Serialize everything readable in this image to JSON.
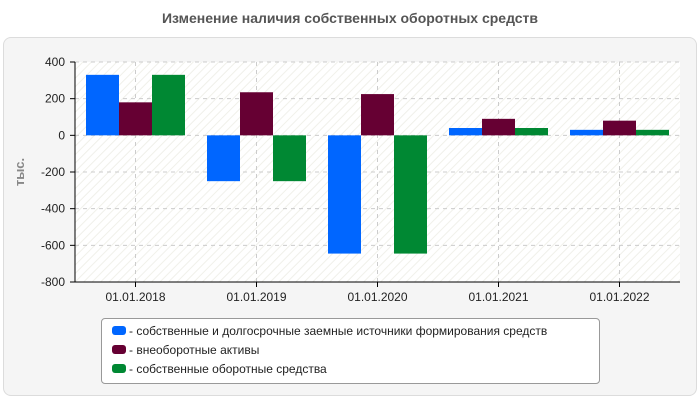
{
  "chart_data": {
    "type": "bar",
    "title": "Изменение наличия собственных оборотных средств",
    "ylabel": "тыс.",
    "xlabel": "",
    "ylim": [
      -800,
      400
    ],
    "yticks": [
      400,
      200,
      0,
      -200,
      -400,
      -600,
      -800
    ],
    "categories": [
      "01.01.2018",
      "01.01.2019",
      "01.01.2020",
      "01.01.2021",
      "01.01.2022"
    ],
    "series": [
      {
        "name": "- собственные и долгосрочные заемные источники формирования средств",
        "color": "#0066ff",
        "values": [
          330,
          -250,
          -645,
          40,
          30
        ]
      },
      {
        "name": "- внеоборотные активы",
        "color": "#660033",
        "values": [
          180,
          235,
          225,
          90,
          80
        ]
      },
      {
        "name": "- собственные оборотные средства",
        "color": "#008833",
        "values": [
          330,
          -250,
          -645,
          40,
          30
        ]
      }
    ],
    "grid": true,
    "legend_position": "bottom"
  }
}
